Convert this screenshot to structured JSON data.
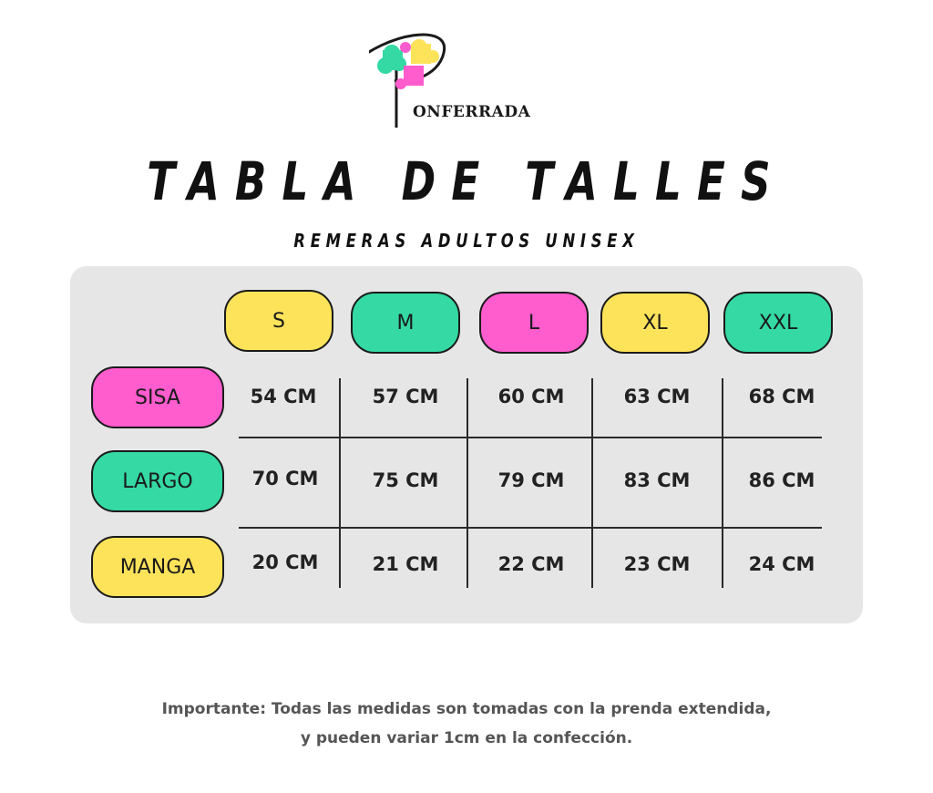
{
  "logo": {
    "text": "ONFERRADA",
    "icon": "tree-puzzle-logo"
  },
  "title": "TABLA DE TALLES",
  "subtitle": "REMERAS ADULTOS UNISEX",
  "colors": {
    "yellow": "#fde35a",
    "green": "#34d9a3",
    "pink": "#ff5ccd",
    "panel": "#e6e6e6"
  },
  "table": {
    "sizes": [
      "S",
      "M",
      "L",
      "XL",
      "XXL"
    ],
    "rows": [
      {
        "label": "SISA",
        "values": [
          "54 CM",
          "57 CM",
          "60 CM",
          "63 CM",
          "68 CM"
        ]
      },
      {
        "label": "LARGO",
        "values": [
          "70 CM",
          "75 CM",
          "79 CM",
          "83 CM",
          "86 CM"
        ]
      },
      {
        "label": "MANGA",
        "values": [
          "20 CM",
          "21 CM",
          "22 CM",
          "23 CM",
          "24 CM"
        ]
      }
    ]
  },
  "note": {
    "line1": "Importante: Todas las medidas son tomadas con la prenda extendida,",
    "line2": "y pueden variar 1cm en la confección."
  }
}
